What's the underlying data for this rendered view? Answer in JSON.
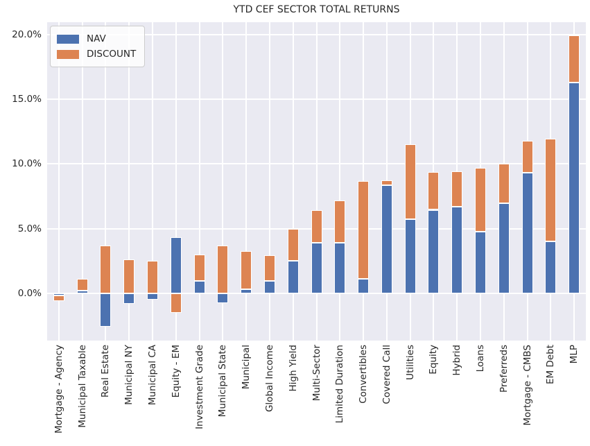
{
  "chart_data": {
    "type": "bar",
    "stacked": true,
    "title": "YTD CEF SECTOR TOTAL RETURNS",
    "xlabel": "",
    "ylabel": "",
    "categories": [
      "Mortgage - Agency",
      "Municipal Taxable",
      "Real Estate",
      "Municipal NY",
      "Municipal CA",
      "Equity - EM",
      "Investment Grade",
      "Municipal State",
      "Municipal",
      "Global Income",
      "High Yield",
      "Multi-Sector",
      "Limited Duration",
      "Convertibles",
      "Covered Call",
      "Utilities",
      "Equity",
      "Hybrid",
      "Loans",
      "Preferreds",
      "Mortgage - CMBS",
      "EM Debt",
      "MLP"
    ],
    "series": [
      {
        "name": "NAV",
        "color": "#4C72B0",
        "values": [
          -0.2,
          0.2,
          -2.6,
          -0.85,
          -0.5,
          4.35,
          0.95,
          -0.75,
          0.3,
          0.95,
          2.5,
          3.9,
          3.9,
          1.1,
          8.35,
          5.7,
          6.45,
          6.7,
          4.75,
          6.95,
          9.3,
          4.0,
          16.3
        ]
      },
      {
        "name": "DISCOUNT",
        "color": "#DD8452",
        "values": [
          -0.4,
          0.9,
          3.7,
          2.6,
          2.5,
          -1.55,
          2.05,
          3.7,
          2.95,
          2.0,
          2.5,
          2.55,
          3.3,
          7.6,
          0.4,
          5.85,
          2.95,
          2.75,
          4.95,
          3.05,
          2.5,
          7.95,
          3.65
        ]
      }
    ],
    "ytick_values": [
      0,
      5,
      10,
      15,
      20
    ],
    "ytick_labels": [
      "0.0%",
      "5.0%",
      "10.0%",
      "15.0%",
      "20.0%"
    ],
    "ylim": [
      -3.7,
      21.0
    ],
    "grid": true,
    "legend_position": "upper left",
    "plot_background": "#EAEAF2",
    "grid_color": "#FFFFFF",
    "text_color": "#262626"
  }
}
